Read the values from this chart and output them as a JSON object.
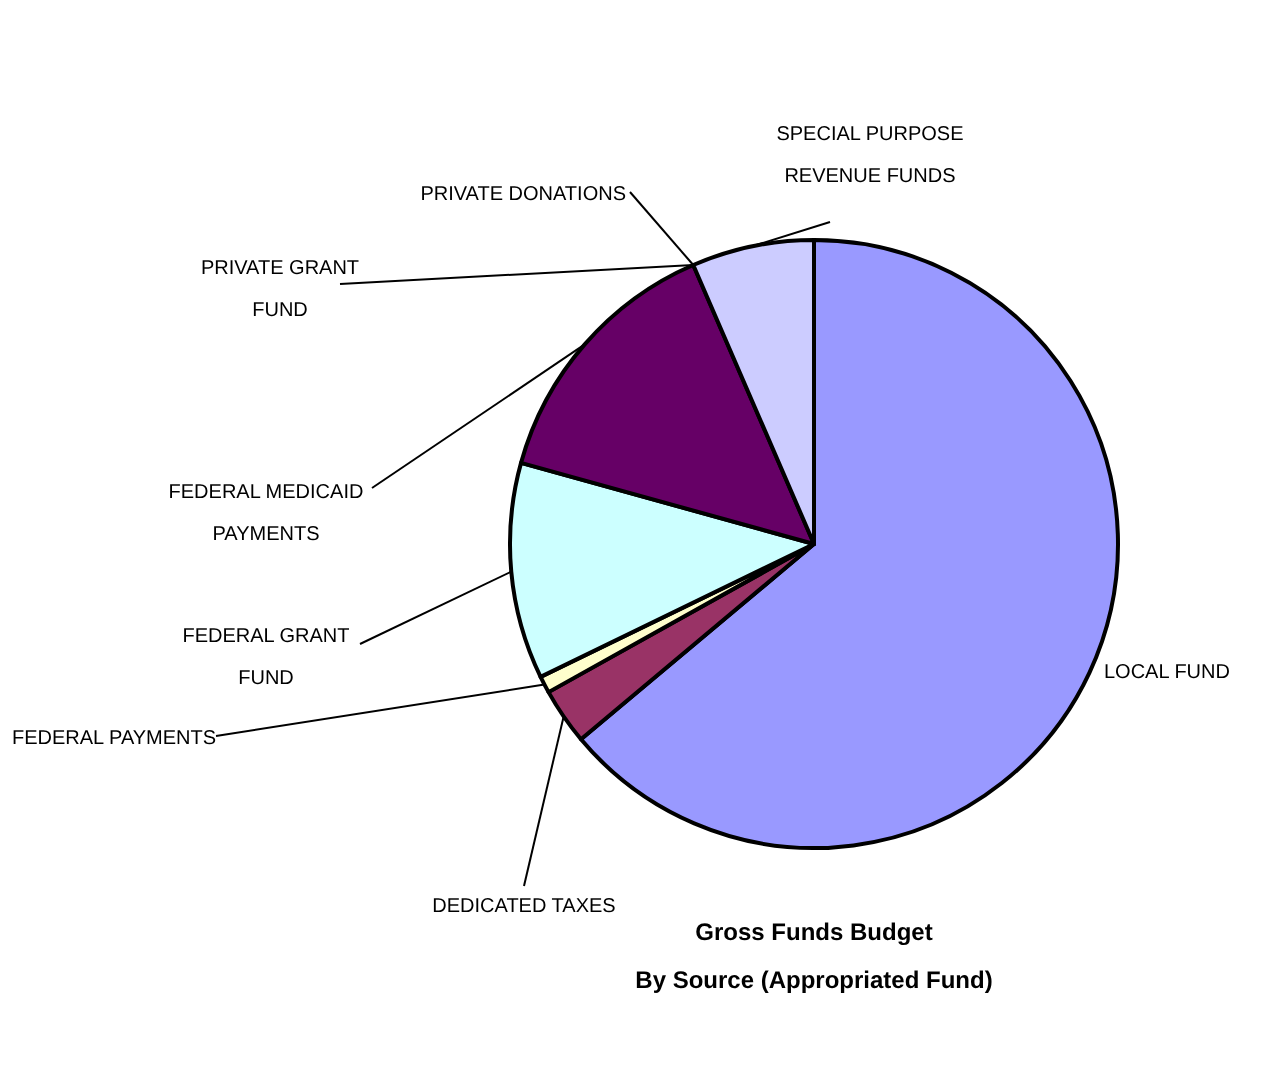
{
  "chart_data": {
    "type": "pie",
    "title": "Gross Funds Budget\nBy Source (Appropriated Fund)",
    "categories": [
      "LOCAL FUND",
      "DEDICATED TAXES",
      "FEDERAL PAYMENTS",
      "FEDERAL GRANT\nFUND",
      "FEDERAL MEDICAID\nPAYMENTS",
      "PRIVATE GRANT\nFUND",
      "PRIVATE DONATIONS",
      "SPECIAL PURPOSE\nREVENUE FUNDS"
    ],
    "values": [
      63.9,
      3.0,
      0.9,
      11.5,
      14.2,
      0,
      0,
      6.5
    ],
    "colors": [
      "#9999ff",
      "#993366",
      "#ffffcc",
      "#ccffff",
      "#660066",
      "#ff8080",
      "#0066cc",
      "#ccccff"
    ]
  }
}
